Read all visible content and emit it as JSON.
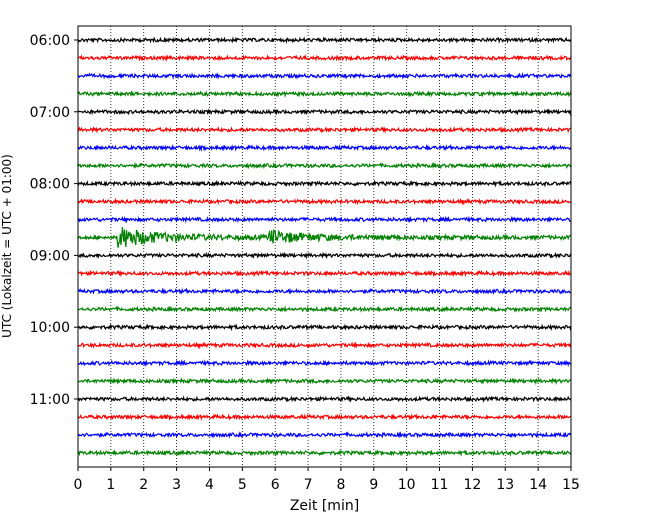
{
  "chart_data": {
    "type": "line",
    "title": "",
    "xlabel": "Zeit  [min]",
    "ylabel": "UTC (Lokalzeit = UTC + 01:00)",
    "xlim": [
      0,
      15
    ],
    "x_ticks": [
      "0",
      "1",
      "2",
      "3",
      "4",
      "5",
      "6",
      "7",
      "8",
      "9",
      "10",
      "11",
      "12",
      "13",
      "14",
      "15"
    ],
    "y_ticks": [
      "06:00",
      "07:00",
      "08:00",
      "09:00",
      "10:00",
      "11:00"
    ],
    "y_tick_trace_index": [
      0,
      4,
      8,
      12,
      16,
      20
    ],
    "trace_start": "06:00",
    "trace_interval_min": 15,
    "trace_count": 24,
    "trace_colors": [
      "#000000",
      "#ff0000",
      "#0000ff",
      "#008000"
    ],
    "grid": "vertical-dotted",
    "events": [
      {
        "trace": 11,
        "time_min": 1.2,
        "amplitude": 1.0
      },
      {
        "trace": 11,
        "time_min": 5.8,
        "amplitude": 0.55
      }
    ]
  }
}
